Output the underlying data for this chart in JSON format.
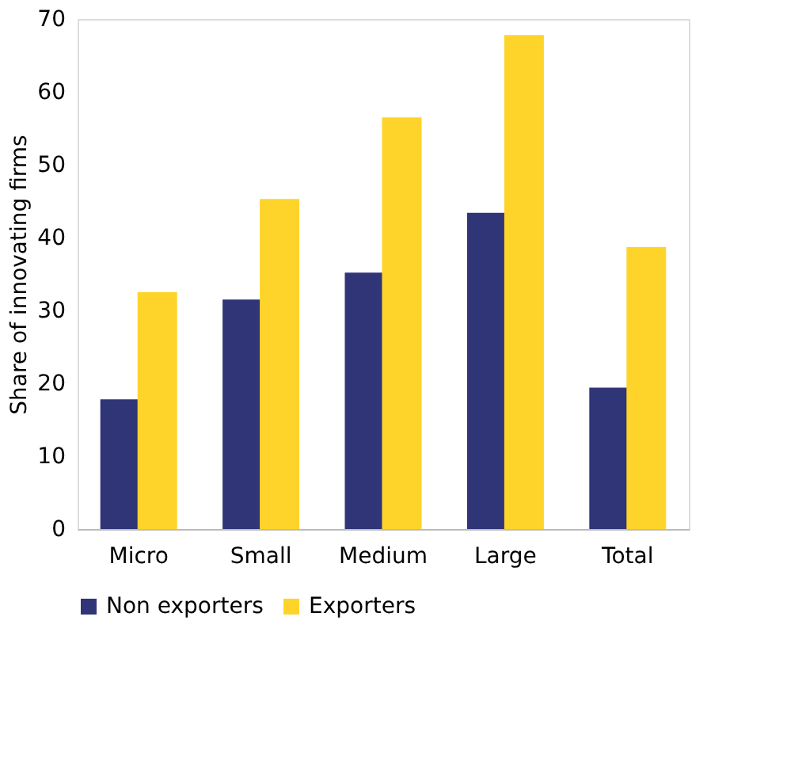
{
  "chart_data": {
    "type": "bar",
    "ylabel": "Share of innovating firms",
    "categories": [
      "Micro",
      "Small",
      "Medium",
      "Large",
      "Total"
    ],
    "series": [
      {
        "name": "Non exporters",
        "color": "#2f3577",
        "values": [
          17.8,
          31.5,
          35.2,
          43.4,
          19.4
        ]
      },
      {
        "name": "Exporters",
        "color": "#ffd42a",
        "values": [
          32.5,
          45.3,
          56.5,
          67.8,
          38.7
        ]
      }
    ],
    "ylim": [
      0,
      70
    ],
    "yticks": [
      0,
      10,
      20,
      30,
      40,
      50,
      60,
      70
    ],
    "grid": false,
    "legend": "bottom"
  }
}
